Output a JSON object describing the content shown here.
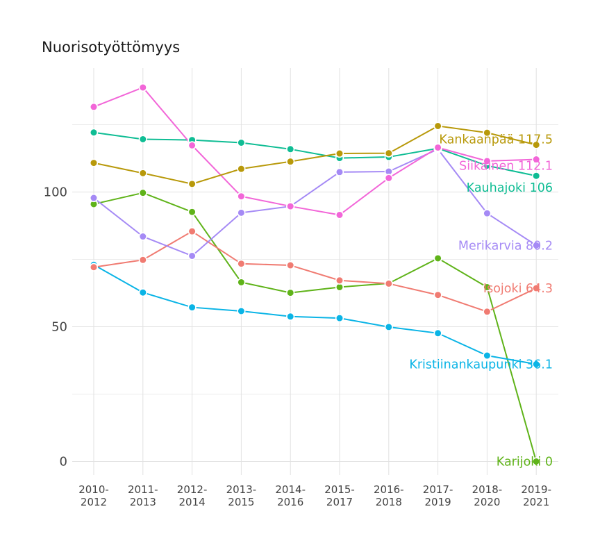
{
  "chart_data": {
    "type": "line",
    "title": "Nuorisotyöttömyys",
    "xlabel": "",
    "ylabel": "",
    "ylim": [
      -5,
      145
    ],
    "yticks": [
      0,
      50,
      100
    ],
    "grid": true,
    "legend": "end-labels",
    "categories": [
      "2010-2012",
      "2011-2013",
      "2012-2014",
      "2013-2015",
      "2014-2016",
      "2015-2017",
      "2016-2018",
      "2017-2019",
      "2018-2020",
      "2019-2021"
    ],
    "series": [
      {
        "name": "Kankaanpää",
        "end_label": "Kankaanpää 117.5",
        "color": "#b8990a",
        "values": [
          110.8,
          107,
          103,
          108.6,
          111.3,
          114.3,
          114.4,
          124.5,
          122,
          117.5
        ]
      },
      {
        "name": "Siikainen",
        "end_label": "Siikainen 112.1",
        "color": "#f266d8",
        "values": [
          131.6,
          138.8,
          117.3,
          98.4,
          94.7,
          91.5,
          105.2,
          116.5,
          111.5,
          112.1
        ]
      },
      {
        "name": "Kauhajoki",
        "end_label": "Kauhajoki 106",
        "color": "#0fbd94",
        "values": [
          122.1,
          119.6,
          119.3,
          118.3,
          115.9,
          112.6,
          113,
          116.2,
          109.8,
          106
        ]
      },
      {
        "name": "Merikarvia",
        "end_label": "Merikarvia 80.2",
        "color": "#a58af5",
        "values": [
          97.8,
          83.5,
          76.3,
          92.3,
          94.7,
          107.4,
          107.6,
          115.9,
          92.1,
          80.2
        ]
      },
      {
        "name": "Isojoki",
        "end_label": "Isojoki 64.3",
        "color": "#f07b72",
        "values": [
          72.1,
          74.8,
          85.4,
          73.4,
          72.8,
          67.2,
          66,
          61.8,
          55.6,
          64.3
        ]
      },
      {
        "name": "Kristiinankaupunki",
        "end_label": "Kristiinankaupunki 36.1",
        "color": "#0ab4e6",
        "values": [
          73,
          62.7,
          57.2,
          55.8,
          53.8,
          53.2,
          49.9,
          47.6,
          39.3,
          36.1
        ]
      },
      {
        "name": "Karijoki",
        "end_label": "Karijoki 0",
        "color": "#5fb319",
        "values": [
          95.5,
          99.7,
          92.6,
          66.5,
          62.6,
          64.7,
          66.1,
          75.4,
          64.7,
          0
        ]
      }
    ]
  }
}
